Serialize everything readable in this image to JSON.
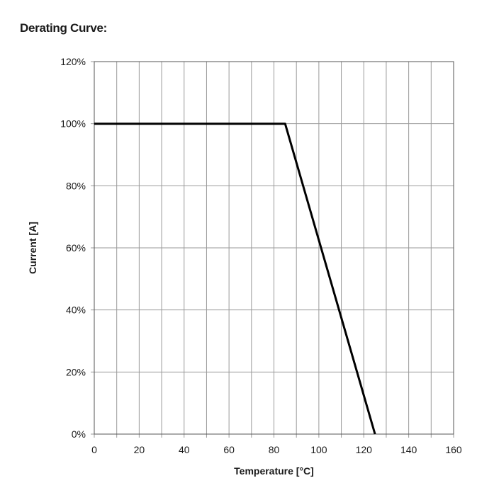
{
  "chart_data": {
    "type": "line",
    "title": "Derating Curve:",
    "xlabel": "Temperature [°C]",
    "ylabel": "Current [A]",
    "xlim": [
      0,
      160
    ],
    "ylim": [
      0,
      120
    ],
    "x_ticks": [
      0,
      20,
      40,
      60,
      80,
      100,
      120,
      140,
      160
    ],
    "x_tick_labels": [
      "0",
      "20",
      "40",
      "60",
      "80",
      "100",
      "120",
      "140",
      "160"
    ],
    "y_ticks": [
      0,
      20,
      40,
      60,
      80,
      100,
      120
    ],
    "y_tick_labels": [
      "0%",
      "20%",
      "40%",
      "60%",
      "80%",
      "100%",
      "120%"
    ],
    "x_minor_step": 10,
    "grid": true,
    "series": [
      {
        "x": [
          0,
          84,
          85,
          125
        ],
        "y": [
          100,
          100,
          100,
          0
        ]
      }
    ],
    "line_color": "#000000"
  }
}
